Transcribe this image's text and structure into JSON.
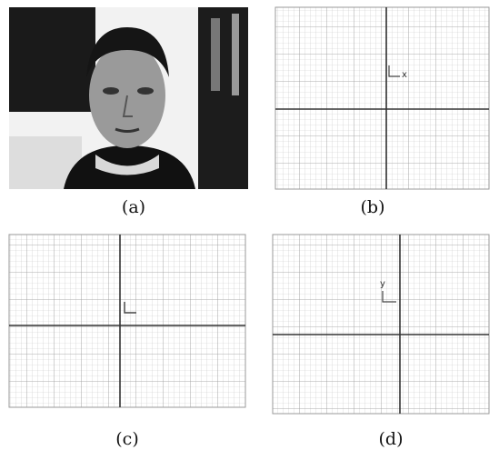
{
  "panels": [
    {
      "caption": "(a)"
    },
    {
      "caption": "(b)",
      "axis_label": "x"
    },
    {
      "caption": "(c)"
    },
    {
      "caption": "(d)",
      "axis_label": "y"
    }
  ]
}
